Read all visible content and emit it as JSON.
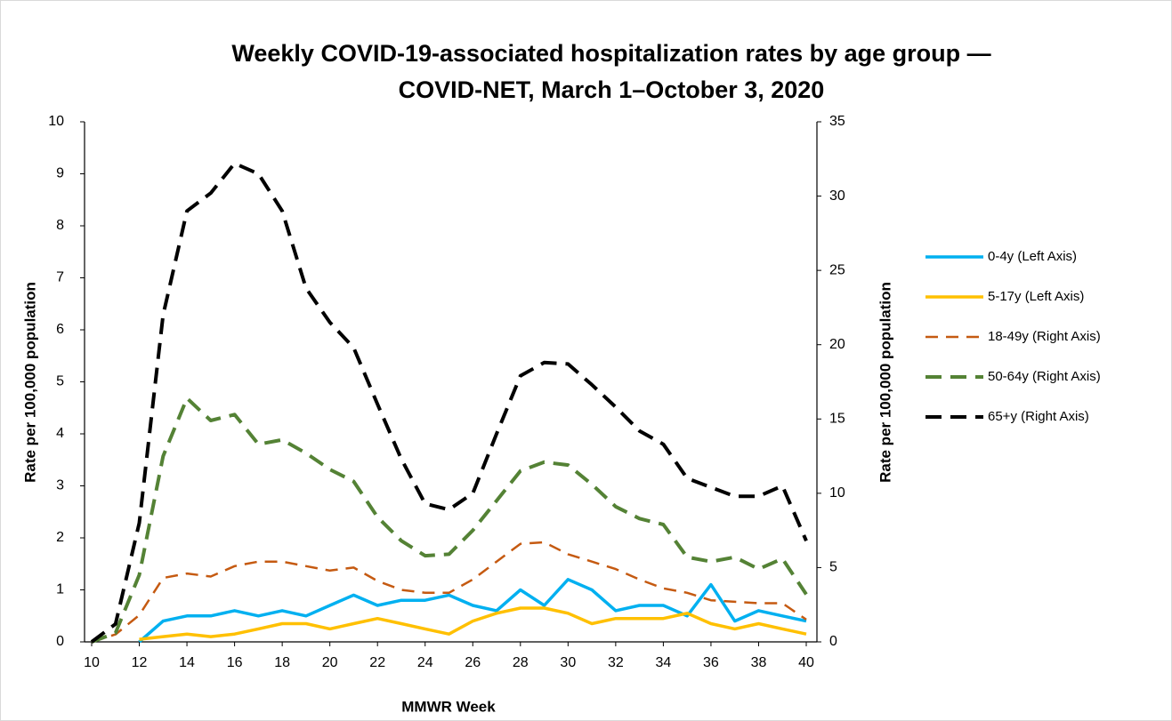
{
  "chart_data": {
    "type": "line",
    "title": [
      "Weekly COVID-19-associated hospitalization rates by age group —",
      "COVID-NET, March 1–October 3, 2020"
    ],
    "x_label": "MMWR  Week",
    "y_label": "Rate per 100,000 population",
    "y2_label": "Rate per 100,000 population",
    "x": [
      10,
      11,
      12,
      13,
      14,
      15,
      16,
      17,
      18,
      19,
      20,
      21,
      22,
      23,
      24,
      25,
      26,
      27,
      28,
      29,
      30,
      31,
      32,
      33,
      34,
      35,
      36,
      37,
      38,
      39,
      40
    ],
    "xlim": [
      10,
      40
    ],
    "xticks": [
      10,
      12,
      14,
      16,
      18,
      20,
      22,
      24,
      26,
      28,
      30,
      32,
      34,
      36,
      38,
      40
    ],
    "ylim": [
      0,
      10
    ],
    "yticks": [
      0,
      1,
      2,
      3,
      4,
      5,
      6,
      7,
      8,
      9,
      10
    ],
    "y2lim": [
      0,
      35
    ],
    "y2ticks": [
      0,
      5,
      10,
      15,
      20,
      25,
      30,
      35
    ],
    "grid": false,
    "legend": "right",
    "series": [
      {
        "name": "0-4y (Left Axis)",
        "color": "#00b0f0",
        "line_style": "solid",
        "axis": "y",
        "values": [
          null,
          null,
          0,
          0.4,
          0.5,
          0.5,
          0.6,
          0.5,
          0.6,
          0.5,
          0.7,
          0.9,
          0.7,
          0.8,
          0.8,
          0.9,
          0.7,
          0.6,
          1.0,
          0.7,
          1.2,
          1.0,
          0.6,
          0.7,
          0.7,
          0.5,
          1.1,
          0.4,
          0.6,
          0.5,
          0.4
        ]
      },
      {
        "name": "5-17y (Left Axis)",
        "color": "#ffc000",
        "line_style": "solid",
        "axis": "y",
        "values": [
          null,
          null,
          0.05,
          0.1,
          0.15,
          0.1,
          0.15,
          0.25,
          0.35,
          0.35,
          0.25,
          0.35,
          0.45,
          0.35,
          0.25,
          0.15,
          0.4,
          0.55,
          0.65,
          0.65,
          0.55,
          0.35,
          0.45,
          0.45,
          0.45,
          0.55,
          0.35,
          0.25,
          0.35,
          0.25,
          0.15
        ]
      },
      {
        "name": "18-49y (Right Axis)",
        "color": "#c55a11",
        "line_style": "dashed",
        "axis": "y2",
        "values": [
          0,
          0.5,
          1.8,
          4.3,
          4.6,
          4.4,
          5.1,
          5.4,
          5.4,
          5.1,
          4.8,
          5.0,
          4.1,
          3.5,
          3.3,
          3.3,
          4.2,
          5.4,
          6.6,
          6.7,
          5.9,
          5.4,
          4.9,
          4.2,
          3.6,
          3.3,
          2.8,
          2.7,
          2.6,
          2.6,
          1.5
        ]
      },
      {
        "name": "50-64y (Right Axis)",
        "color": "#548235",
        "line_style": "dashed",
        "axis": "y2",
        "values": [
          0,
          0.6,
          4.5,
          12.5,
          16.4,
          14.9,
          15.3,
          13.3,
          13.6,
          12.7,
          11.6,
          10.8,
          8.4,
          6.8,
          5.8,
          5.9,
          7.5,
          9.5,
          11.5,
          12.1,
          11.9,
          10.6,
          9.1,
          8.3,
          7.9,
          5.7,
          5.4,
          5.7,
          4.9,
          5.6,
          3.2
        ]
      },
      {
        "name": "65+y (Right Axis)",
        "color": "#000000",
        "line_style": "dashed",
        "axis": "y2",
        "values": [
          0,
          1.2,
          8,
          22,
          29,
          30.2,
          32.2,
          31.5,
          29,
          23.8,
          21.5,
          19.8,
          16,
          12.3,
          9.3,
          8.9,
          10,
          14,
          17.9,
          18.8,
          18.7,
          17.3,
          15.8,
          14.2,
          13.3,
          11,
          10.4,
          9.8,
          9.8,
          10.5,
          6.8
        ]
      }
    ]
  }
}
